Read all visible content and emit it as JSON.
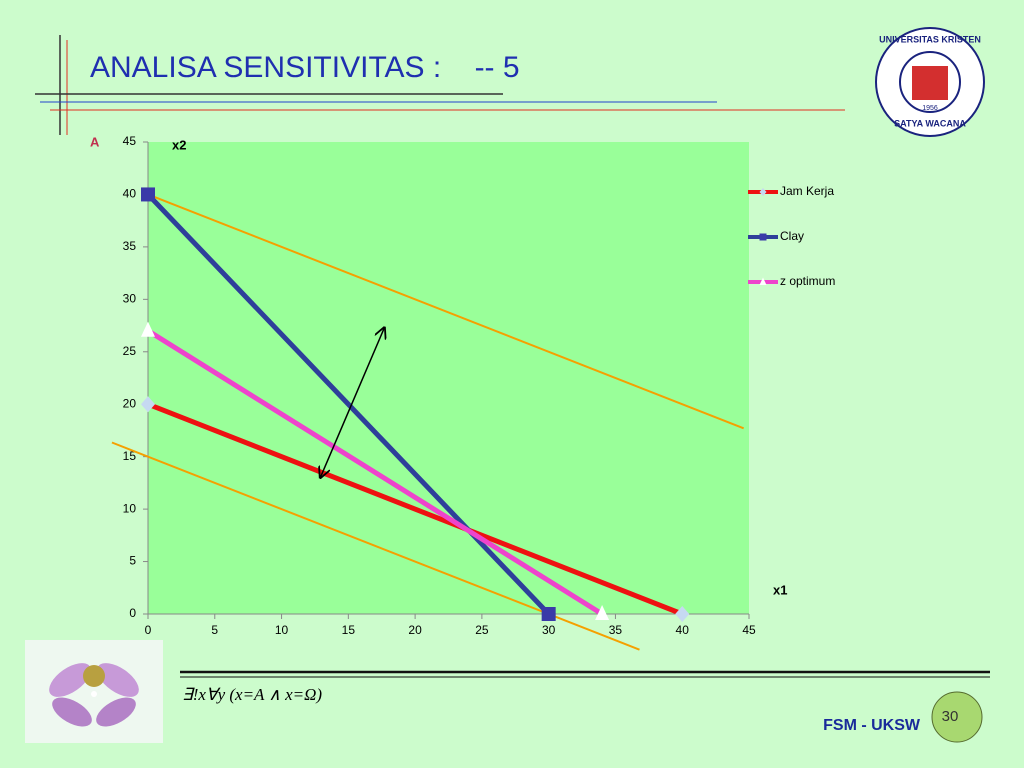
{
  "slide": {
    "title": "ANALISA SENSITIVITAS :    -- 5",
    "label": "A",
    "formula": "∃!x∀y (x=A ∧ x=Ω)",
    "footer": "FSM - UKSW",
    "page": "30",
    "logo": {
      "top": "UNIVERSITAS KRISTEN",
      "bottom": "SATYA WACANA",
      "year": "1956"
    }
  },
  "chart_data": {
    "type": "line",
    "xlabel": "x1",
    "ylabel": "x2",
    "xlim": [
      0,
      45
    ],
    "ylim": [
      0,
      45
    ],
    "xticks": [
      0,
      5,
      10,
      15,
      20,
      25,
      30,
      35,
      40,
      45
    ],
    "yticks": [
      0,
      5,
      10,
      15,
      20,
      25,
      30,
      35,
      40,
      45
    ],
    "series": [
      {
        "name": "Jam Kerja",
        "color": "#ee1111",
        "marker": "diamond",
        "marker_color": "#c6d9f1",
        "x": [
          0,
          40
        ],
        "values": [
          20,
          0
        ]
      },
      {
        "name": "Clay",
        "color": "#2e3f9a",
        "marker": "square",
        "marker_color": "#3a3aa8",
        "x": [
          0,
          30
        ],
        "values": [
          40,
          0
        ]
      },
      {
        "name": "z optimum",
        "color": "#ee44cc",
        "marker": "triangle",
        "marker_color": "#ffffff",
        "x": [
          0,
          34
        ],
        "values": [
          27,
          0
        ]
      }
    ],
    "lines": [
      {
        "color": "#f5a000",
        "x": [
          0,
          44.6
        ],
        "values": [
          40,
          17.7
        ]
      },
      {
        "color": "#f5a000",
        "x": [
          -2.7,
          36.8
        ],
        "values": [
          16.35,
          -3.4
        ]
      }
    ],
    "arrow": {
      "x": [
        12.9,
        17.7
      ],
      "values": [
        13,
        27.3
      ]
    }
  }
}
